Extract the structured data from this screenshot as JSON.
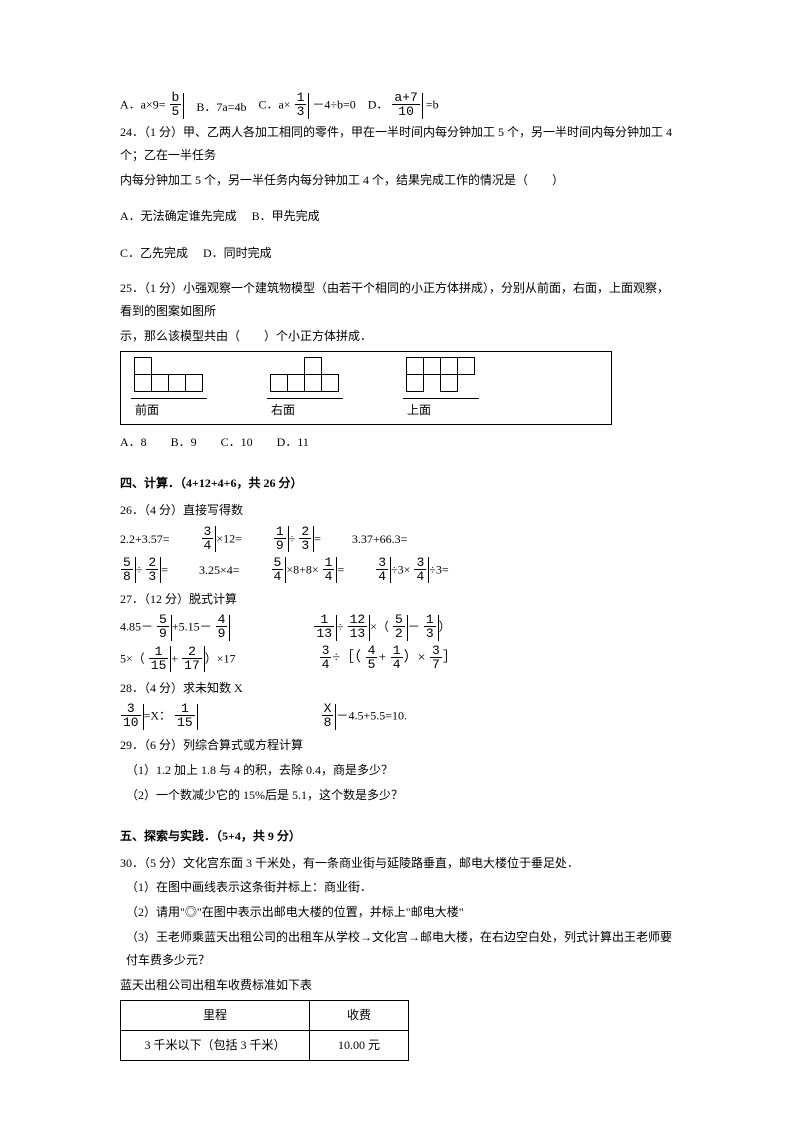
{
  "q23": {
    "optA_pre": "A．a×9=",
    "optA_frac": {
      "n": "b",
      "d": "5"
    },
    "optB": "B．7a=4b",
    "optC_pre": "C．a×",
    "optC_frac": {
      "n": "1",
      "d": "3"
    },
    "optC_post": "－4÷b=0",
    "optD_pre": "D．",
    "optD_frac": {
      "n": "a+7",
      "d": "10"
    },
    "optD_post": "=b"
  },
  "q24": {
    "stem1": "24．（1 分）甲、乙两人各加工相同的零件，甲在一半时间内每分钟加工 5 个，另一半时间内每分钟加工 4 个；乙在一半任务",
    "stem2": "内每分钟加工 5 个，另一半任务内每分钟加工 4 个，结果完成工作的情况是（　　）",
    "optA": "A．无法确定谁先完成",
    "optB": "B．甲先完成",
    "optC": "C．乙先完成",
    "optD": "D．同时完成"
  },
  "q25": {
    "stem1": "25．（1 分）小强观察一个建筑物模型（由若干个相同的小正方体拼成），分别从前面，右面，上面观察，看到的图案如图所",
    "stem2": "示，那么该模型共由（　　）个小正方体拼成．",
    "labels": {
      "front": "前面",
      "right": "右面",
      "top": "上面"
    },
    "front": [
      [
        1,
        0,
        0,
        0
      ],
      [
        1,
        1,
        1,
        1
      ]
    ],
    "rightv": [
      [
        0,
        0,
        1,
        0
      ],
      [
        1,
        1,
        1,
        1
      ]
    ],
    "topv": [
      [
        1,
        1,
        1,
        1
      ],
      [
        1,
        0,
        1,
        0
      ]
    ],
    "options": "A．8　　B．9　　C．10　　D．11"
  },
  "sec4": {
    "title": "四、计算．（4+12+4+6，共 26 分）",
    "q26": {
      "head": "26．（4 分）直接写得数",
      "row1": {
        "a": "2.2+3.57=",
        "b_frac": {
          "n": "3",
          "d": "4"
        },
        "b_post": "×12=",
        "c_f1": {
          "n": "1",
          "d": "9"
        },
        "c_op": "÷",
        "c_f2": {
          "n": "2",
          "d": "3"
        },
        "c_post": "=",
        "d": "3.37+66.3="
      },
      "row2": {
        "a_f1": {
          "n": "5",
          "d": "8"
        },
        "a_op": "÷",
        "a_f2": {
          "n": "2",
          "d": "3"
        },
        "a_post": "=",
        "b_pre": "3.25×4=",
        "c_f1": {
          "n": "5",
          "d": "4"
        },
        "c_mid": "×8+8×",
        "c_f2": {
          "n": "1",
          "d": "4"
        },
        "c_post": "=",
        "d_f1": {
          "n": "3",
          "d": "4"
        },
        "d_op1": "÷3×",
        "d_f2": {
          "n": "3",
          "d": "4"
        },
        "d_op2": "÷3="
      }
    },
    "q27": {
      "head": "27．（12 分）脱式计算",
      "r1a_pre": "4.85－",
      "r1a_f1": {
        "n": "5",
        "d": "9"
      },
      "r1a_mid": "+5.15－",
      "r1a_f2": {
        "n": "4",
        "d": "9"
      },
      "r1b_f1": {
        "n": "1",
        "d": "13"
      },
      "r1b_op1": "÷",
      "r1b_f2": {
        "n": "12",
        "d": "13"
      },
      "r1b_op2": "×（",
      "r1b_f3": {
        "n": "5",
        "d": "2"
      },
      "r1b_op3": "－",
      "r1b_f4": {
        "n": "1",
        "d": "3"
      },
      "r1b_close": "）",
      "r2a_pre": "5×（",
      "r2a_f1": {
        "n": "1",
        "d": "15"
      },
      "r2a_op": "+",
      "r2a_f2": {
        "n": "2",
        "d": "17"
      },
      "r2a_post": "）×17",
      "r2b_f1": {
        "n": "3",
        "d": "4"
      },
      "r2b_div": "÷［（",
      "r2b_f2": {
        "n": "4",
        "d": "5"
      },
      "r2b_plus": "+",
      "r2b_f3": {
        "n": "1",
        "d": "4"
      },
      "r2b_mul": "）×",
      "r2b_f4": {
        "n": "3",
        "d": "7"
      },
      "r2b_close": "］"
    },
    "q28": {
      "head": "28．（4 分）求未知数 X",
      "a_f1": {
        "n": "3",
        "d": "10"
      },
      "a_mid": "=X：",
      "a_f2": {
        "n": "1",
        "d": "15"
      },
      "b_f1": {
        "n": "X",
        "d": "8"
      },
      "b_post": "－4.5+5.5=10."
    },
    "q29": {
      "head": "29．（6 分）列综合算式或方程计算",
      "l1": "（1）1.2 加上 1.8 与 4 的积，去除 0.4，商是多少？",
      "l2": "（2）一个数减少它的 15%后是 5.1，这个数是多少？"
    }
  },
  "sec5": {
    "title": "五、探索与实践．（5+4，共 9 分）",
    "q30": {
      "stem": "30．（5 分）文化宫东面 3 千米处，有一条商业街与延陵路垂直，邮电大楼位于垂足处．",
      "l1": "（1）在图中画线表示这条街并标上：商业街．",
      "l2": "（2）请用\"◎\"在图中表示出邮电大楼的位置，并标上\"邮电大楼\"",
      "l3": "（3）王老师乘蓝天出租公司的出租车从学校→文化宫→邮电大楼，在右边空白处，列式计算出王老师要付车费多少元？",
      "l4": "蓝天出租公司出租车收费标准如下表"
    },
    "table": {
      "h1": "里程",
      "h2": "收费",
      "r1a": "3 千米以下（包括 3 千米）",
      "r1b": "10.00 元"
    }
  },
  "colors": {
    "text": "#000000",
    "bg": "#ffffff",
    "border": "#000000"
  }
}
